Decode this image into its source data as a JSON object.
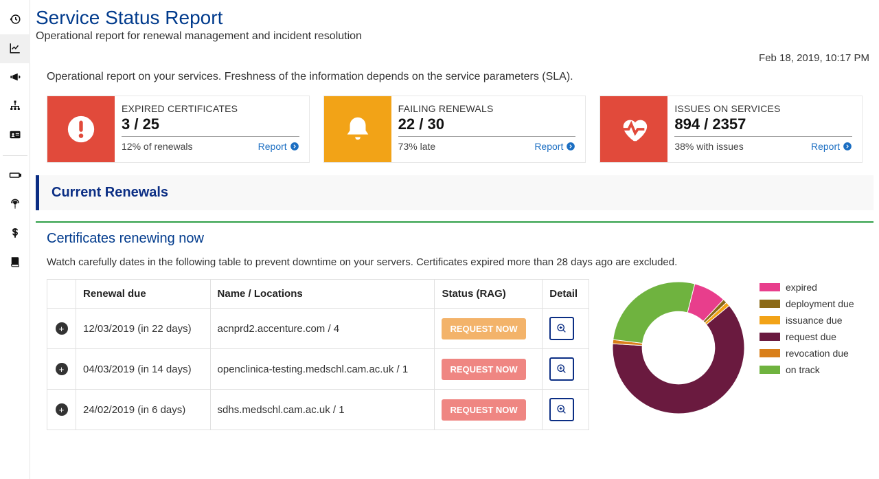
{
  "page": {
    "title": "Service Status Report",
    "subtitle": "Operational report for renewal management and incident resolution",
    "timestamp": "Feb 18, 2019, 10:17 PM",
    "intro": "Operational report on your services. Freshness of the information depends on the service parameters (SLA)."
  },
  "kpis": [
    {
      "label": "EXPIRED CERTIFICATES",
      "value": "3 / 25",
      "sub": "12% of renewals",
      "link_label": "Report",
      "icon": "exclamation-circle",
      "icon_bg": "#e14a3b",
      "icon_fg": "#ffffff"
    },
    {
      "label": "FAILING RENEWALS",
      "value": "22 / 30",
      "sub": "73% late",
      "link_label": "Report",
      "icon": "bell",
      "icon_bg": "#f2a317",
      "icon_fg": "#ffffff"
    },
    {
      "label": "ISSUES ON SERVICES",
      "value": "894 / 2357",
      "sub": "38% with issues",
      "link_label": "Report",
      "icon": "heartbeat",
      "icon_bg": "#e14a3b",
      "icon_fg": "#ffffff"
    }
  ],
  "section": {
    "title": "Current Renewals",
    "sub_title": "Certificates renewing now",
    "table_intro": "Watch carefully dates in the following table to prevent downtime on your servers. Certificates expired more than 28 days ago are excluded."
  },
  "table": {
    "columns": [
      "",
      "Renewal due",
      "Name / Locations",
      "Status (RAG)",
      "Detail"
    ],
    "rows": [
      {
        "due": "12/03/2019 (in 22 days)",
        "name": "acnprd2.accenture.com / 4",
        "status_label": "REQUEST NOW",
        "status_color": "#f3b36a"
      },
      {
        "due": "04/03/2019 (in 14 days)",
        "name": "openclinica-testing.medschl.cam.ac.uk / 1",
        "status_label": "REQUEST NOW",
        "status_color": "#ef8682"
      },
      {
        "due": "24/02/2019 (in 6 days)",
        "name": "sdhs.medschl.cam.ac.uk / 1",
        "status_label": "REQUEST NOW",
        "status_color": "#ef8682"
      }
    ]
  },
  "donut": {
    "segments": [
      {
        "label": "expired",
        "value": 8,
        "color": "#e83e8c"
      },
      {
        "label": "deployment due",
        "value": 1,
        "color": "#8b6a17"
      },
      {
        "label": "issuance due",
        "value": 1,
        "color": "#f2a317"
      },
      {
        "label": "request due",
        "value": 62,
        "color": "#6a1a3f"
      },
      {
        "label": "revocation due",
        "value": 1,
        "color": "#d97f1a"
      },
      {
        "label": "on track",
        "value": 27,
        "color": "#6fb33f"
      }
    ],
    "inner_ratio": 0.55,
    "rotation_deg": -90
  },
  "colors": {
    "link": "#1b6ec2",
    "heading": "#003a8c",
    "section_accent": "#0b2e84",
    "green_rule": "#2e9f46"
  },
  "sidebar": [
    {
      "name": "history-icon",
      "active": false
    },
    {
      "name": "chart-line-icon",
      "active": true
    },
    {
      "name": "bullhorn-icon",
      "active": false
    },
    {
      "name": "sitemap-icon",
      "active": false
    },
    {
      "name": "id-card-icon",
      "active": false
    },
    {
      "divider": true
    },
    {
      "name": "battery-icon",
      "active": false
    },
    {
      "name": "podcast-icon",
      "active": false
    },
    {
      "name": "dollar-icon",
      "active": false
    },
    {
      "name": "book-icon",
      "active": false
    }
  ]
}
